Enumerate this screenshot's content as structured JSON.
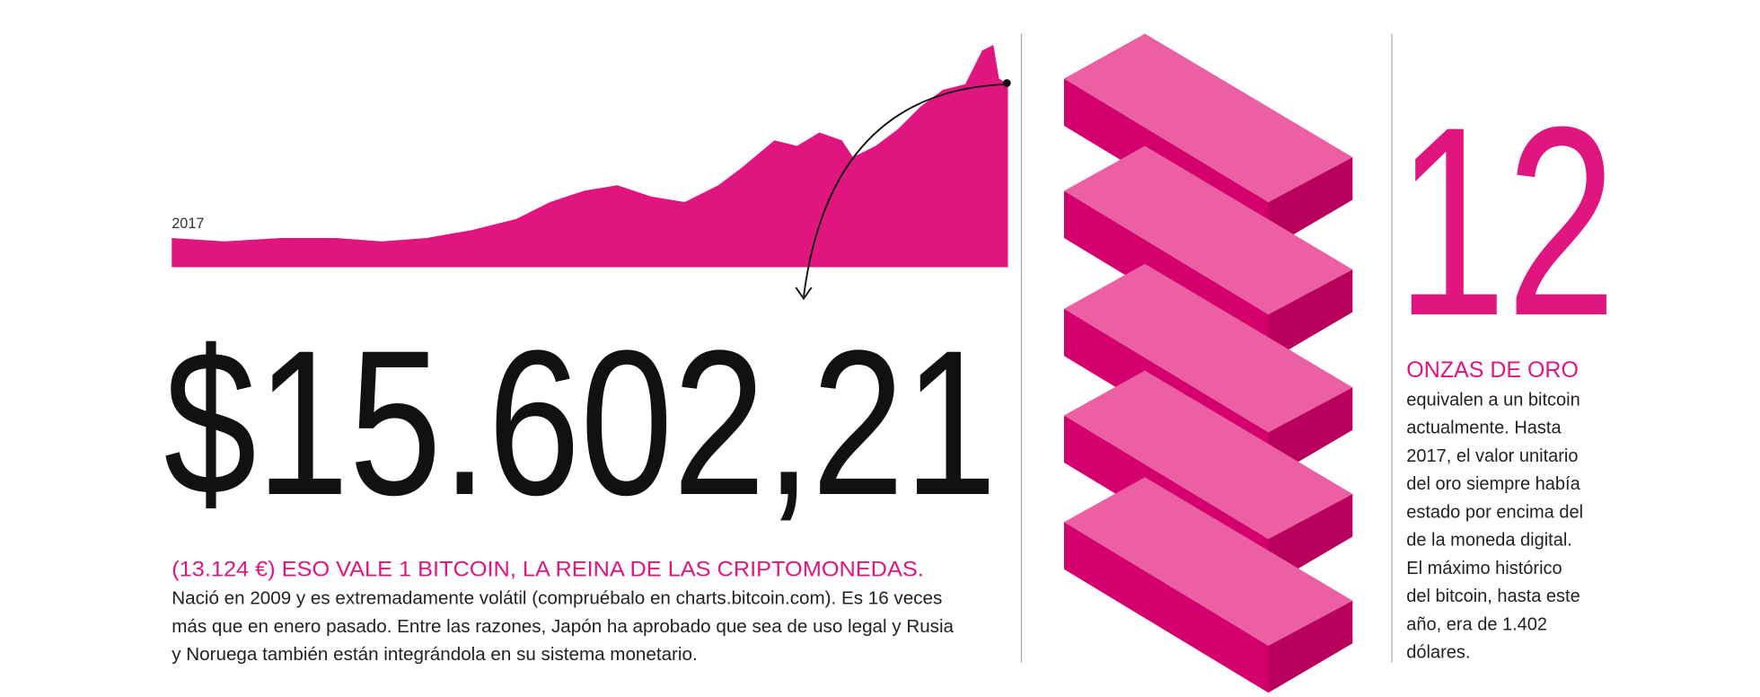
{
  "year_label": "2017",
  "price": "$15.602,21",
  "subtitle": "(13.124 €) ESO VALE 1 BITCOIN, LA REINA DE LAS CRIPTOMONEDAS.",
  "body_lines": [
    "Nació en 2009 y es extremadamente volátil (compruébalo en charts.bitcoin.com). Es 16 veces",
    "más que en enero pasado. Entre las razones, Japón ha aprobado que sea de uso legal y Rusia",
    "y Noruega también están integrándola en su sistema monetario."
  ],
  "side": {
    "number": "12",
    "heading": "ONZAS DE ORO",
    "lines": [
      "equivalen a un bitcoin",
      "actualmente. Hasta",
      "2017, el valor unitario",
      "del oro siempre había",
      "estado por encima del",
      "de la moneda digital.",
      "El máximo histórico",
      "del bitcoin, hasta este",
      "año, era de 1.402",
      "dólares."
    ]
  }
}
